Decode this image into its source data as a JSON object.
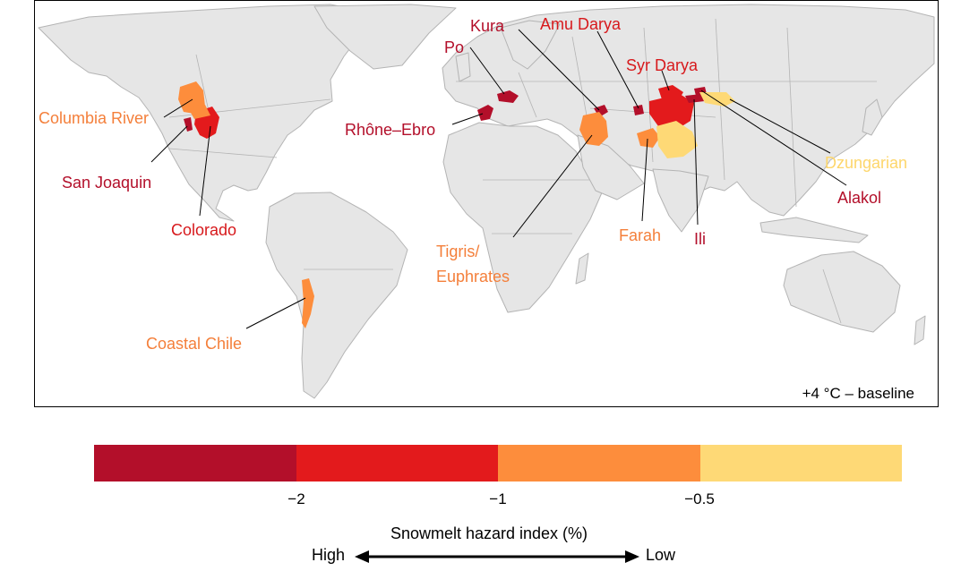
{
  "map": {
    "panel_label": "+4 °C – baseline",
    "land_color": "#e6e6e6",
    "border_color": "#b4b4b4",
    "basins": [
      {
        "name": "Columbia River",
        "class": "orange",
        "color": "#fd8d3c"
      },
      {
        "name": "San Joaquin",
        "class": "dark-red",
        "color": "#b30f2a"
      },
      {
        "name": "Colorado",
        "class": "red",
        "color": "#e31a1c"
      },
      {
        "name": "Coastal Chile",
        "class": "orange",
        "color": "#fd8d3c"
      },
      {
        "name": "Rhône–Ebro",
        "class": "dark-red",
        "color": "#b30f2a"
      },
      {
        "name": "Po",
        "class": "dark-red",
        "color": "#b30f2a"
      },
      {
        "name": "Kura",
        "class": "dark-red",
        "color": "#b30f2a"
      },
      {
        "name": "Amu Darya",
        "class": "red",
        "color": "#e31a1c"
      },
      {
        "name": "Syr Darya",
        "class": "red",
        "color": "#e31a1c"
      },
      {
        "name": "Tigris/",
        "class": "orange",
        "color": "#fd8d3c"
      },
      {
        "name": "Euphrates",
        "class": "orange",
        "color": "#fd8d3c"
      },
      {
        "name": "Farah",
        "class": "orange",
        "color": "#fd8d3c"
      },
      {
        "name": "Ili",
        "class": "dark-red",
        "color": "#b30f2a"
      },
      {
        "name": "Alakol",
        "class": "dark-red",
        "color": "#b30f2a"
      },
      {
        "name": "Dzungarian",
        "class": "yellow",
        "color": "#fed976"
      }
    ]
  },
  "legend": {
    "title": "Snowmelt hazard index (%)",
    "colors": [
      "#b30f2a",
      "#e31a1c",
      "#fd8d3c",
      "#fed976"
    ],
    "ticks": [
      "−2",
      "−1",
      "−0.5"
    ],
    "high_label": "High",
    "low_label": "Low"
  }
}
